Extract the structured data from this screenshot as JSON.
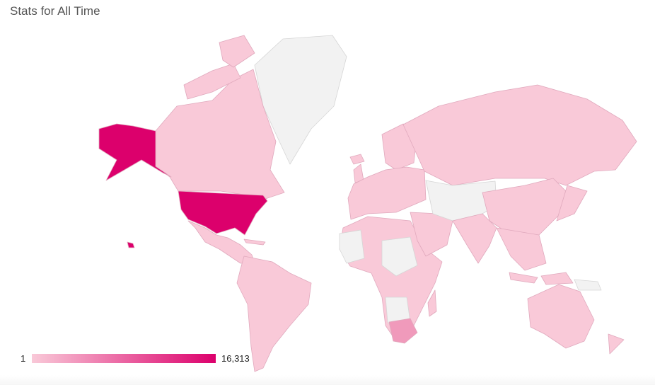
{
  "title": "Stats for All Time",
  "chart_data": {
    "type": "geo",
    "region": "world",
    "legend": {
      "min_label": "1",
      "max_label": "16,313",
      "min": 1,
      "max": 16313,
      "placement": "bottom-left"
    },
    "colors": {
      "min": "#f9c9d8",
      "max": "#dc006c",
      "no_data": "#f2f2f2",
      "border": "#e0a9bd"
    },
    "highlighted": {
      "highest": "United States"
    }
  }
}
